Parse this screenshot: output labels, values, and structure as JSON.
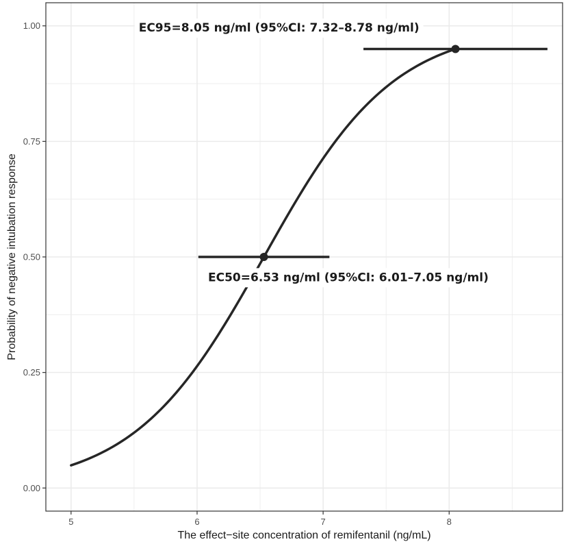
{
  "chart_data": {
    "type": "line",
    "title": "",
    "xlabel": "The effect−site concentration of remifentanil (ng/mL)",
    "ylabel": "Probability of negative intubation response",
    "xlim": [
      4.8,
      8.9
    ],
    "ylim": [
      -0.05,
      1.05
    ],
    "x_ticks": [
      5,
      6,
      7,
      8
    ],
    "x_tick_labels": [
      "5",
      "6",
      "7",
      "8"
    ],
    "y_ticks": [
      0,
      0.25,
      0.5,
      0.75,
      1.0
    ],
    "y_tick_labels": [
      "0.00",
      "0.25",
      "0.50",
      "0.75",
      "1.00"
    ],
    "grid": true,
    "colors": {
      "line": "#262626",
      "grid": "#ebebeb",
      "panel_border": "#333333"
    },
    "curve": {
      "model": "logistic",
      "ec50": 6.53,
      "x_start": 5.0,
      "x_end": 8.05
    },
    "points": [
      {
        "label": "EC50",
        "x": 6.53,
        "y": 0.5,
        "ci": [
          6.01,
          7.05
        ]
      },
      {
        "label": "EC95",
        "x": 8.05,
        "y": 0.95,
        "ci": [
          7.32,
          8.78
        ]
      }
    ],
    "annotations": [
      {
        "text": "EC95=8.05 ng/ml (95%CI: 7.32–8.78 ng/ml)",
        "x": 6.65,
        "y": 0.995
      },
      {
        "text": "EC50=6.53 ng/ml (95%CI: 6.01–7.05 ng/ml)",
        "x": 7.2,
        "y": 0.455
      }
    ]
  }
}
